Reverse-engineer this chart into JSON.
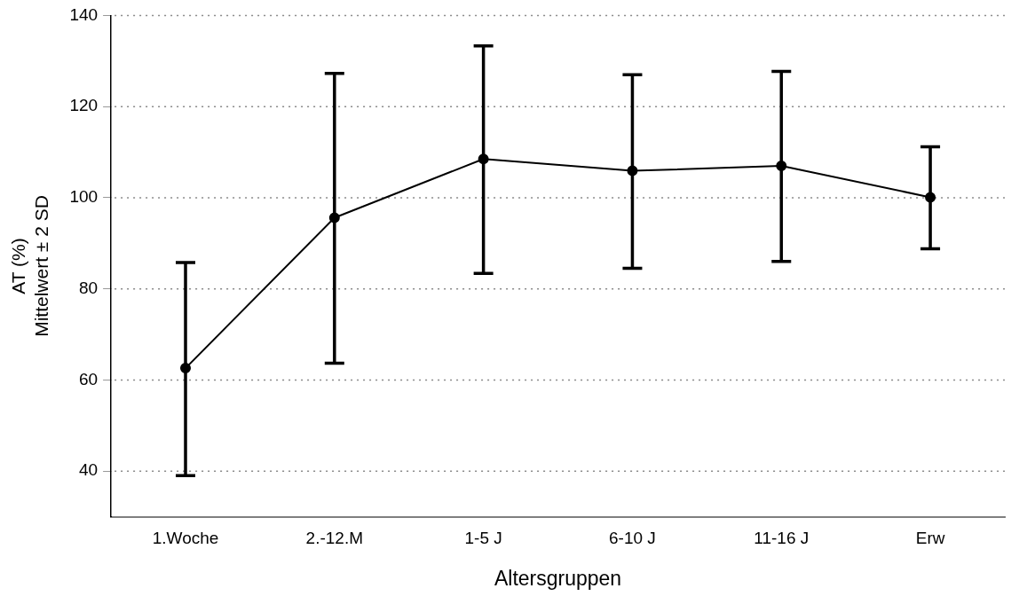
{
  "chart_data": {
    "type": "line",
    "xlabel": "Altersgruppen",
    "ylabel": "AT (%)\nMittelwert ± 2 SD",
    "categories": [
      "1.Woche",
      "2.-12.M",
      "1-5 J",
      "6-10 J",
      "11-16 J",
      "Erw"
    ],
    "series": [
      {
        "color": "#000000",
        "values": [
          62.6,
          95.6,
          108.5,
          105.9,
          107.0,
          100.1
        ],
        "errors": [
          [
            39.0,
            85.8
          ],
          [
            63.7,
            127.3
          ],
          [
            83.4,
            133.3
          ],
          [
            84.5,
            127.0
          ],
          [
            86.0,
            127.7
          ],
          [
            88.8,
            111.2
          ]
        ]
      }
    ],
    "ylim": [
      30,
      140
    ],
    "yticks": [
      40,
      60,
      80,
      100,
      120,
      140
    ],
    "grid": "y",
    "marker": "circle",
    "line_style": "solid",
    "legend": false
  }
}
